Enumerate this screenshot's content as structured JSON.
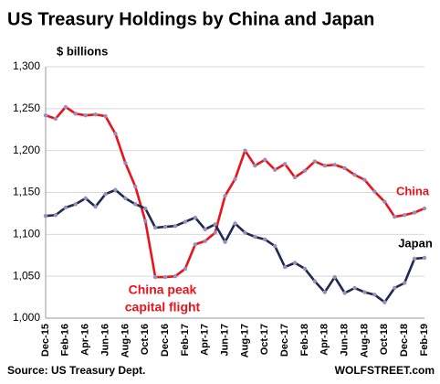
{
  "chart_data": {
    "type": "line",
    "title": "US Treasury Holdings by China and Japan",
    "y_label": "$ billions",
    "source": "Source: US Treasury Dept.",
    "brand": "WOLFSTREET.com",
    "categories": [
      "Dec-15",
      null,
      "Feb-16",
      null,
      "Apr-16",
      null,
      "Jun-16",
      null,
      "Aug-16",
      null,
      "Oct-16",
      null,
      "Dec-16",
      null,
      "Feb-17",
      null,
      "Apr-17",
      null,
      "Jun-17",
      null,
      "Aug-17",
      null,
      "Oct-17",
      null,
      "Dec-17",
      null,
      "Feb-18",
      null,
      "Apr-18",
      null,
      "Jun-18",
      null,
      "Aug-18",
      null,
      "Oct-18",
      null,
      "Dec-18",
      null,
      "Feb-19"
    ],
    "series": [
      {
        "name": "China",
        "color": "#e8131b",
        "values": [
          1242,
          1238,
          1252,
          1244,
          1242,
          1243,
          1241,
          1220,
          1185,
          1157,
          1116,
          1049,
          1049,
          1050,
          1059,
          1088,
          1092,
          1102,
          1146,
          1166,
          1200,
          1182,
          1189,
          1177,
          1184,
          1168,
          1176,
          1187,
          1182,
          1183,
          1179,
          1171,
          1165,
          1151,
          1139,
          1121,
          1123,
          1126,
          1131
        ]
      },
      {
        "name": "Japan",
        "color": "#1c2b4f",
        "values": [
          1122,
          1123,
          1132,
          1136,
          1143,
          1133,
          1148,
          1153,
          1143,
          1136,
          1131,
          1108,
          1109,
          1110,
          1115,
          1120,
          1106,
          1112,
          1091,
          1113,
          1102,
          1097,
          1094,
          1086,
          1061,
          1066,
          1059,
          1044,
          1031,
          1049,
          1030,
          1036,
          1031,
          1028,
          1019,
          1036,
          1042,
          1071,
          1072
        ]
      }
    ],
    "marker_color": "#a08cb8",
    "annotations": [
      {
        "lines": [
          "China peak",
          "capital flight"
        ],
        "color": "#e8131b"
      }
    ],
    "ylim": [
      1000,
      1300
    ],
    "yticks": [
      {
        "value": 1000,
        "label": "1,000"
      },
      {
        "value": 1050,
        "label": "1,050"
      },
      {
        "value": 1100,
        "label": "1,100"
      },
      {
        "value": 1150,
        "label": "1,150"
      },
      {
        "value": 1200,
        "label": "1,200"
      },
      {
        "value": 1250,
        "label": "1,250"
      },
      {
        "value": 1300,
        "label": "1,300"
      }
    ],
    "grid": true
  }
}
